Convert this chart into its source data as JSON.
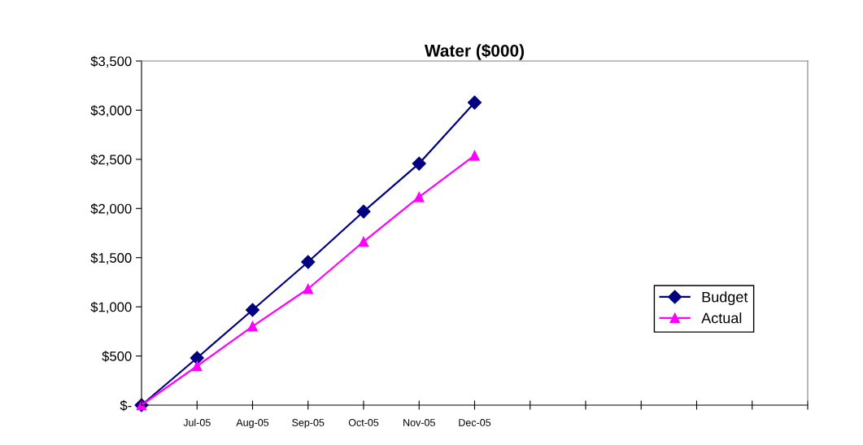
{
  "chart_data": {
    "type": "line",
    "title": "Water ($000)",
    "categories": [
      null,
      "Jul-05",
      "Aug-05",
      "Sep-05",
      "Oct-05",
      "Nov-05",
      "Dec-05",
      null,
      null,
      null,
      null,
      null,
      null
    ],
    "series": [
      {
        "name": "Budget",
        "color": "#000080",
        "marker": "diamond",
        "values": [
          0,
          480,
          968,
          1456,
          1969,
          2457,
          3077,
          null,
          null,
          null,
          null,
          null,
          null
        ]
      },
      {
        "name": "Actual",
        "color": "#ff00ff",
        "marker": "triangle",
        "values": [
          0,
          397,
          802,
          1183,
          1663,
          2117,
          2539,
          null,
          null,
          null,
          null,
          null,
          null
        ]
      }
    ],
    "ylim": [
      0,
      3500
    ],
    "yticks": [
      {
        "value": 0,
        "label": "$-"
      },
      {
        "value": 500,
        "label": "$500"
      },
      {
        "value": 1000,
        "label": "$1,000"
      },
      {
        "value": 1500,
        "label": "$1,500"
      },
      {
        "value": 2000,
        "label": "$2,000"
      },
      {
        "value": 2500,
        "label": "$2,500"
      },
      {
        "value": 3000,
        "label": "$3,000"
      },
      {
        "value": 3500,
        "label": "$3,500"
      }
    ],
    "grid": false,
    "legend": "right",
    "line_style": "solid"
  }
}
